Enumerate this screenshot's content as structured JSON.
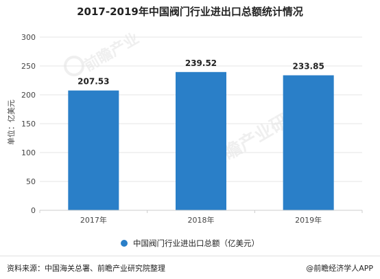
{
  "chart_data": {
    "type": "bar",
    "title": "2017-2019年中国阀门行业进出口总额统计情况",
    "ylabel": "单位：亿美元",
    "xlabel": "",
    "categories": [
      "2017年",
      "2018年",
      "2019年"
    ],
    "series": [
      {
        "name": "中国阀门行业进出口总额（亿美元）",
        "values": [
          207.53,
          239.52,
          233.85
        ]
      }
    ],
    "data_labels": [
      "207.53",
      "239.52",
      "233.85"
    ],
    "yticks": [
      "0",
      "50",
      "100",
      "150",
      "200",
      "250",
      "300"
    ],
    "ylim": [
      0,
      300
    ],
    "grid": true,
    "legend_position": "bottom",
    "bar_color": "#2a7fc8"
  },
  "footer": {
    "source": "资料来源：中国海关总署、前瞻产业研究院整理",
    "brand": "@前瞻经济学人APP"
  },
  "watermark": {
    "brand": "前瞻产业",
    "brand2": "前瞻产业研究院"
  }
}
